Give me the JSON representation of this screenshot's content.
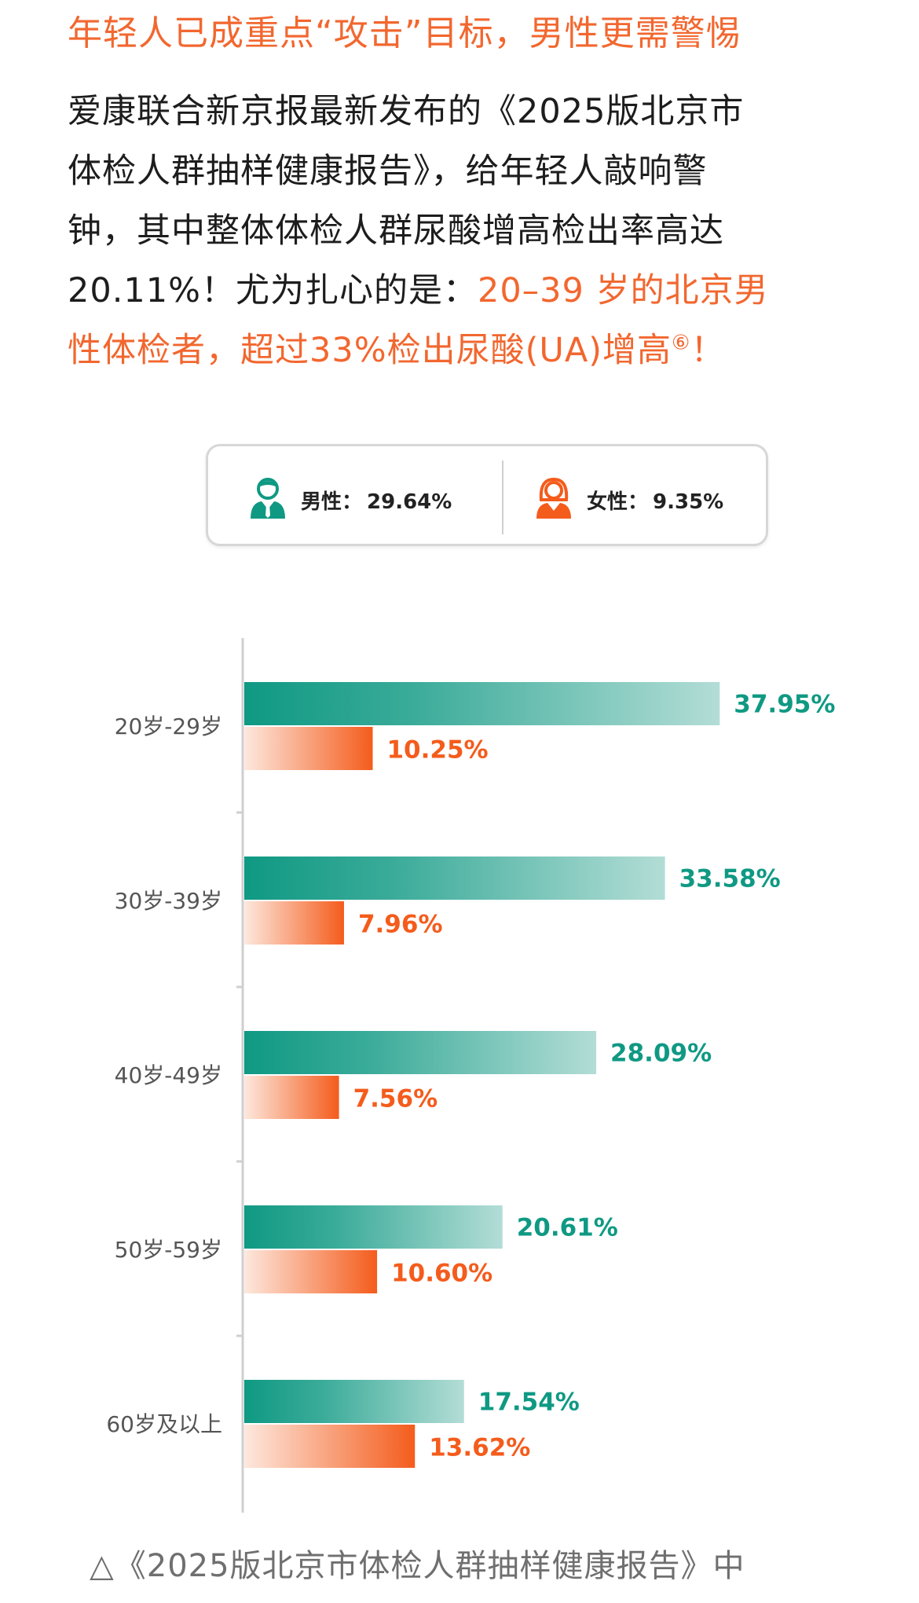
{
  "headline": "年轻人已成重点“攻击”目标，男性更需警惕",
  "paragraph": {
    "line1": "爱康联合新京报最新发布的《2025版北京市",
    "line2": "体检人群抽样健康报告》，给年轻人敲响警",
    "line3": "钟，其中整体体检人群尿酸增高检出率高达",
    "line4_plain": "20.11%！尤为扎心的是：",
    "line4_hl": "20–39 岁的北京男",
    "line5_hl": "性体检者，超过33%检出尿酸(UA)增高",
    "footnote": "⑥",
    "line5_end": "！"
  },
  "legend": {
    "male_label": "男性：",
    "male_value": "29.64%",
    "female_label": "女性：",
    "female_value": "9.35%",
    "male_icon": "male-person-icon",
    "female_icon": "female-person-icon"
  },
  "colors": {
    "male": "#0f9983",
    "female": "#f45c1c",
    "highlight": "#f2672f"
  },
  "chart_data": {
    "type": "bar",
    "orientation": "horizontal",
    "categories": [
      "20岁-29岁",
      "30岁-39岁",
      "40岁-49岁",
      "50岁-59岁",
      "60岁及以上"
    ],
    "series": [
      {
        "name": "男性",
        "values": [
          37.95,
          33.58,
          28.09,
          20.61,
          17.54
        ]
      },
      {
        "name": "女性",
        "values": [
          10.25,
          7.96,
          7.56,
          10.6,
          13.62
        ]
      }
    ],
    "value_labels": {
      "male": [
        "37.95%",
        "33.58%",
        "28.09%",
        "20.61%",
        "17.54%"
      ],
      "female": [
        "10.25%",
        "7.96%",
        "7.56%",
        "10.60%",
        "13.62%"
      ]
    },
    "title": "",
    "xlabel": "",
    "ylabel": "",
    "grid": false,
    "legend_position": "top"
  },
  "caption": "△《2025版北京市体检人群抽样健康报告》中"
}
